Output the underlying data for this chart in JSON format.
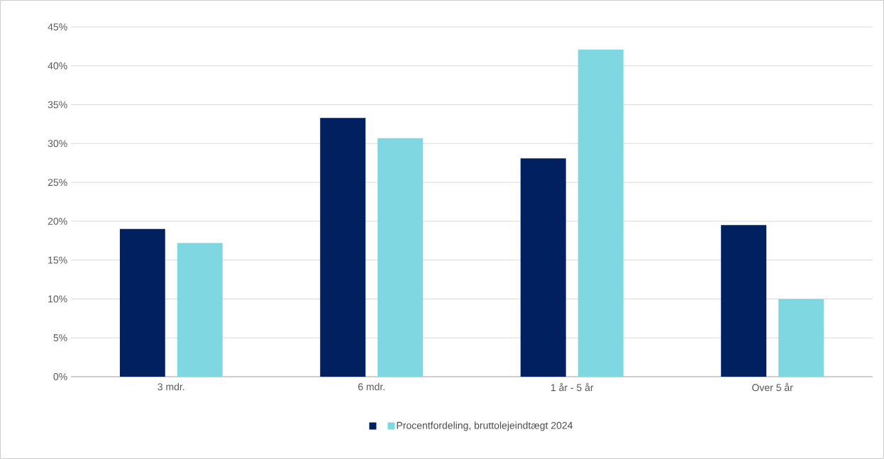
{
  "chart_data": {
    "type": "bar",
    "categories": [
      "3 mdr.",
      "6 mdr.",
      "1 år - 5 år",
      "Over 5 år"
    ],
    "series": [
      {
        "color": "#002060",
        "values": [
          19.0,
          33.3,
          28.1,
          19.5
        ]
      },
      {
        "name": "Procentfordeling, bruttolejeindtægt 2024",
        "color": "#7fd7e2",
        "values": [
          17.2,
          30.7,
          42.1,
          10.0
        ]
      }
    ],
    "ylim": [
      0,
      45
    ],
    "yticks": [
      {
        "value": 0,
        "label": "0%"
      },
      {
        "value": 5,
        "label": "5%"
      },
      {
        "value": 10,
        "label": "10%"
      },
      {
        "value": 15,
        "label": "15%"
      },
      {
        "value": 20,
        "label": "20%"
      },
      {
        "value": 25,
        "label": "25%"
      },
      {
        "value": 30,
        "label": "30%"
      },
      {
        "value": 35,
        "label": "35%"
      },
      {
        "value": 40,
        "label": "40%"
      },
      {
        "value": 45,
        "label": "45%"
      }
    ],
    "grid": "y",
    "legend": "bottom"
  }
}
